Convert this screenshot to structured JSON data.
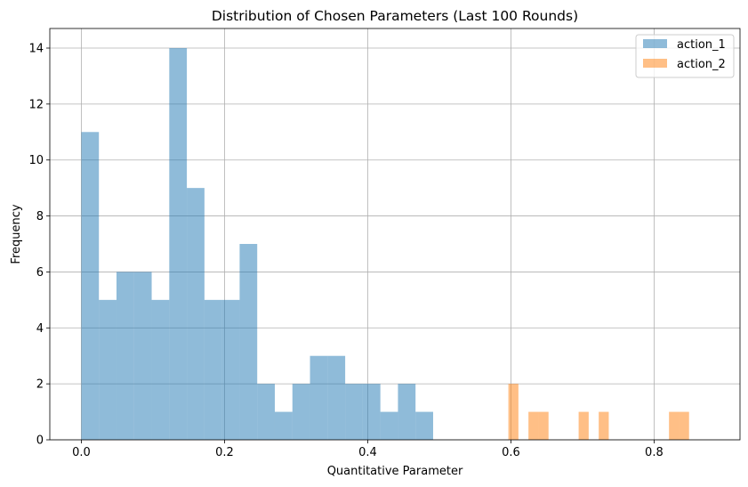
{
  "chart_data": {
    "type": "histogram",
    "title": "Distribution of Chosen Parameters (Last 100 Rounds)",
    "xlabel": "Quantitative Parameter",
    "ylabel": "Frequency",
    "xlim": [
      -0.044,
      0.92
    ],
    "ylim": [
      0,
      14.7
    ],
    "xticks": [
      0.0,
      0.2,
      0.4,
      0.6,
      0.8
    ],
    "xtick_labels": [
      "0.0",
      "0.2",
      "0.4",
      "0.6",
      "0.8"
    ],
    "yticks": [
      0,
      2,
      4,
      6,
      8,
      10,
      12,
      14
    ],
    "ytick_labels": [
      "0",
      "2",
      "4",
      "6",
      "8",
      "10",
      "12",
      "14"
    ],
    "grid": true,
    "legend_position": "top-right",
    "series": [
      {
        "name": "action_1",
        "color": "#1f77b4",
        "alpha": 0.5,
        "bin_start": 0.0,
        "bin_width": 0.02457,
        "counts": [
          11,
          5,
          6,
          6,
          5,
          14,
          9,
          5,
          5,
          7,
          2,
          1,
          2,
          3,
          3,
          2,
          2,
          1,
          2,
          1
        ]
      },
      {
        "name": "action_2",
        "color": "#ff7f0e",
        "alpha": 0.5,
        "bin_start": 0.5965,
        "bin_width": 0.01402,
        "counts": [
          2,
          0,
          1,
          1,
          0,
          0,
          0,
          1,
          0,
          1,
          0,
          0,
          0,
          0,
          0,
          0,
          1,
          1
        ]
      }
    ]
  }
}
